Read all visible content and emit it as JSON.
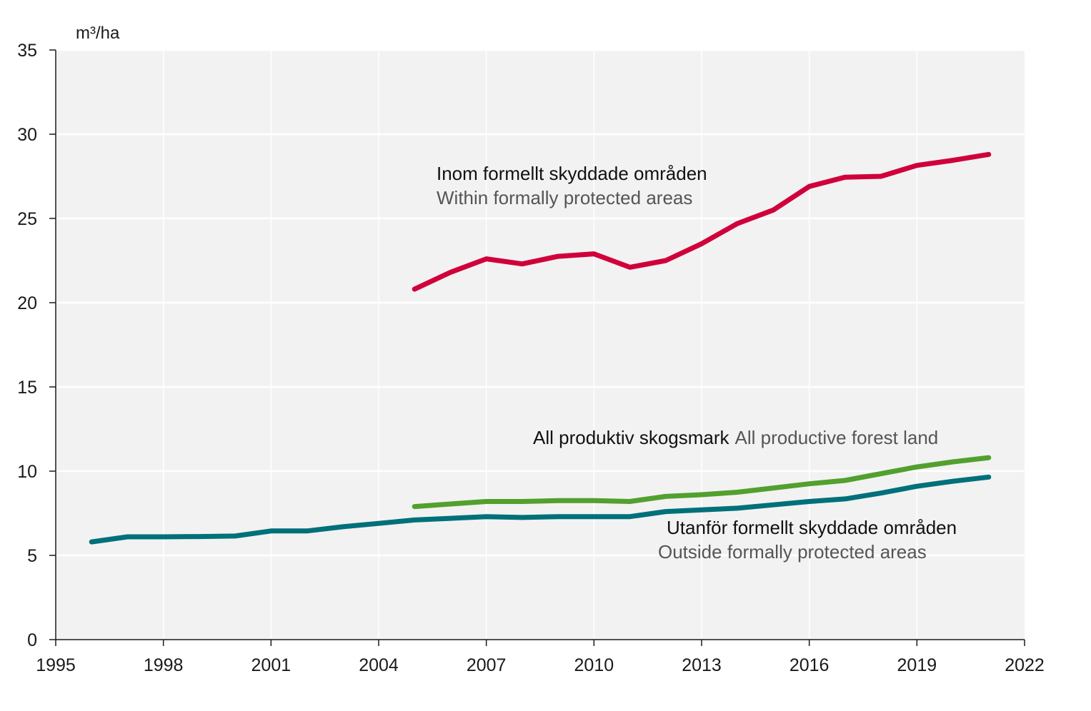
{
  "chart_data": {
    "type": "line",
    "ylabel": "m³/ha",
    "xlim": [
      1995,
      2022
    ],
    "ylim": [
      0,
      35
    ],
    "x_ticks": [
      1995,
      1998,
      2001,
      2004,
      2007,
      2010,
      2013,
      2016,
      2019,
      2022
    ],
    "y_ticks": [
      0,
      5,
      10,
      15,
      20,
      25,
      30,
      35
    ],
    "grid": "horizontal",
    "background": "#f2f2f2",
    "series": [
      {
        "key": "within",
        "color": "#d0003a",
        "x": [
          2005,
          2006,
          2007,
          2008,
          2009,
          2010,
          2011,
          2012,
          2013,
          2014,
          2015,
          2016,
          2017,
          2018,
          2019,
          2020,
          2021
        ],
        "values": [
          20.8,
          21.8,
          22.6,
          22.3,
          22.75,
          22.9,
          22.1,
          22.5,
          23.5,
          24.7,
          25.5,
          26.9,
          27.45,
          27.5,
          28.15,
          28.45,
          28.8
        ]
      },
      {
        "key": "all",
        "color": "#52a02e",
        "x": [
          2005,
          2006,
          2007,
          2008,
          2009,
          2010,
          2011,
          2012,
          2013,
          2014,
          2015,
          2016,
          2017,
          2018,
          2019,
          2020,
          2021
        ],
        "values": [
          7.9,
          8.05,
          8.2,
          8.2,
          8.25,
          8.25,
          8.2,
          8.5,
          8.6,
          8.75,
          9.0,
          9.25,
          9.45,
          9.85,
          10.25,
          10.55,
          10.8
        ]
      },
      {
        "key": "outside",
        "color": "#00707a",
        "x": [
          1996,
          1997,
          1998,
          1999,
          2000,
          2001,
          2002,
          2003,
          2004,
          2005,
          2006,
          2007,
          2008,
          2009,
          2010,
          2011,
          2012,
          2013,
          2014,
          2015,
          2016,
          2017,
          2018,
          2019,
          2020,
          2021
        ],
        "values": [
          5.8,
          6.1,
          6.1,
          6.12,
          6.15,
          6.45,
          6.45,
          6.7,
          6.9,
          7.1,
          7.2,
          7.3,
          7.25,
          7.3,
          7.3,
          7.3,
          7.6,
          7.7,
          7.8,
          8.0,
          8.2,
          8.35,
          8.7,
          9.1,
          9.4,
          9.65
        ]
      }
    ],
    "annotations": {
      "within_sv": "Inom formellt skyddade områden",
      "within_en": "Within formally protected areas",
      "all_sv": "All produktiv skogsmark",
      "all_en": "All productive forest land",
      "outside_sv": "Utanför formellt skyddade områden",
      "outside_en": "Outside formally protected areas"
    }
  }
}
